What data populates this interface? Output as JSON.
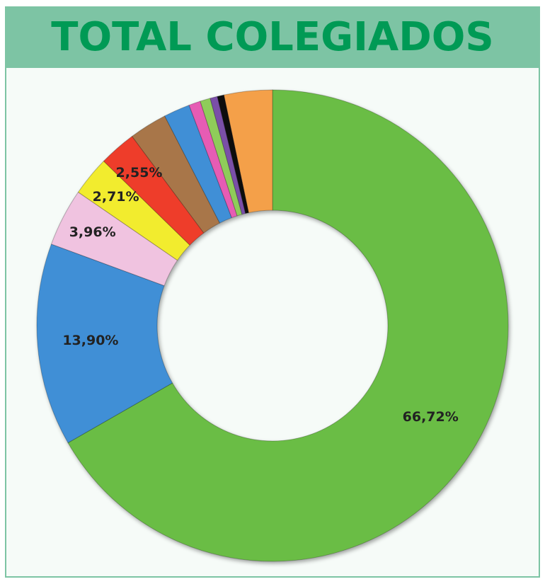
{
  "chart_data": {
    "type": "donut",
    "title": "TOTAL COLEGIADOS",
    "categories": [
      null,
      null,
      null,
      null,
      null,
      null,
      null,
      null,
      null,
      null,
      null,
      null
    ],
    "values": [
      66.72,
      13.9,
      3.96,
      2.71,
      2.55,
      2.6,
      1.8,
      0.8,
      0.7,
      0.5,
      0.46,
      3.3
    ],
    "value_labels": [
      "66,72%",
      "13,90%",
      "3,96%",
      "2,71%",
      "2,55%",
      null,
      null,
      null,
      null,
      null,
      null,
      null
    ],
    "colors": [
      "#6bbd45",
      "#3f8fd6",
      "#f0c3e0",
      "#f2ec2e",
      "#ee3e2c",
      "#a87648",
      "#3f8fd6",
      "#e65cb4",
      "#8fcc5a",
      "#7a4fa8",
      "#111111",
      "#f4a04a"
    ]
  }
}
